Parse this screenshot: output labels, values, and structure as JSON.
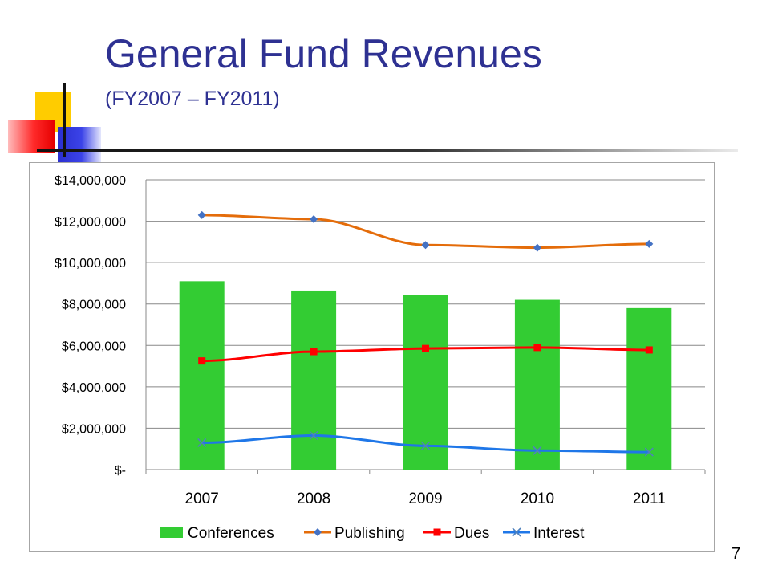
{
  "slide": {
    "title": "General Fund Revenues",
    "subtitle": "(FY2007 – FY2011)",
    "page_number": "7"
  },
  "chart_data": {
    "type": "bar",
    "categories": [
      "2007",
      "2008",
      "2009",
      "2010",
      "2011"
    ],
    "series": [
      {
        "name": "Conferences",
        "type": "bar",
        "color": "#33cc33",
        "values": [
          9100000,
          8650000,
          8420000,
          8200000,
          7800000
        ]
      },
      {
        "name": "Publishing",
        "type": "line",
        "color": "#e46c0a",
        "marker": "diamond",
        "marker_color": "#4472c4",
        "values": [
          12300000,
          12100000,
          10850000,
          10720000,
          10900000
        ]
      },
      {
        "name": "Dues",
        "type": "line",
        "color": "#ff0000",
        "marker": "square",
        "marker_color": "#ff0000",
        "values": [
          5250000,
          5700000,
          5850000,
          5900000,
          5780000
        ]
      },
      {
        "name": "Interest",
        "type": "line",
        "color": "#1f77e8",
        "marker": "x",
        "marker_color": "#4f81bd",
        "values": [
          1300000,
          1650000,
          1150000,
          920000,
          850000
        ]
      }
    ],
    "y_ticks": [
      0,
      2000000,
      4000000,
      6000000,
      8000000,
      10000000,
      12000000,
      14000000
    ],
    "y_tick_labels": [
      "$-",
      "$2,000,000",
      "$4,000,000",
      "$6,000,000",
      "$8,000,000",
      "$10,000,000",
      "$12,000,000",
      "$14,000,000"
    ],
    "ylim": [
      0,
      14000000
    ],
    "grid": true,
    "legend": "bottom",
    "title": "",
    "xlabel": "",
    "ylabel": ""
  }
}
